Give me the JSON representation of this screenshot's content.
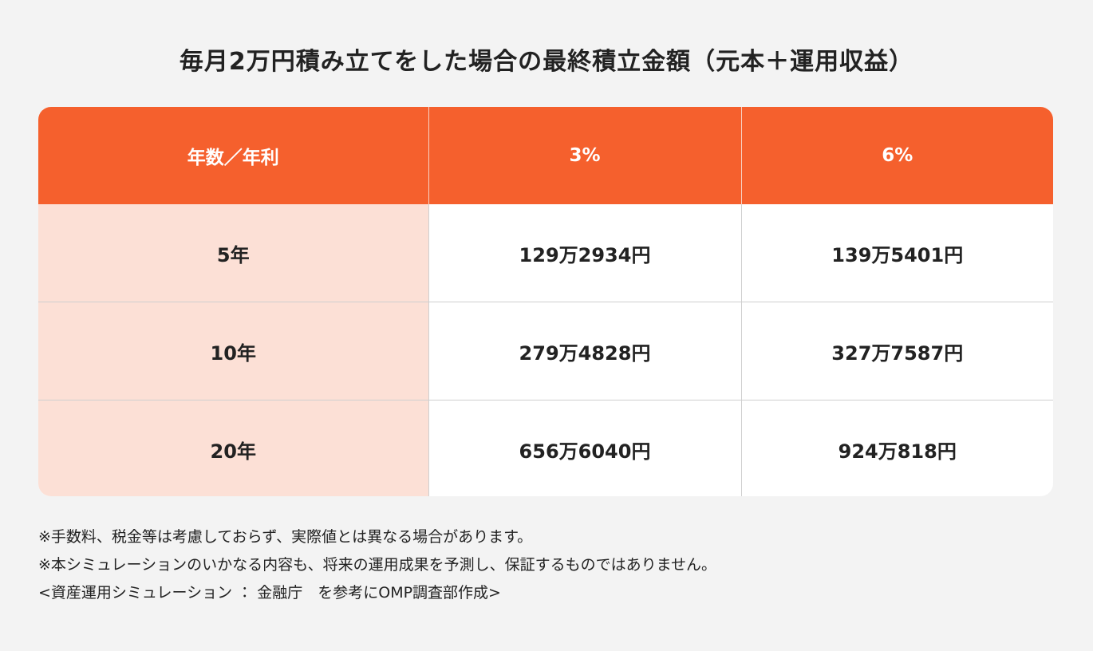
{
  "title": "毎月2万円積み立てをした場合の最終積立金額（元本＋運用収益）",
  "table": {
    "header": [
      "年数／年利",
      "3%",
      "6%"
    ],
    "rows": [
      [
        "5年",
        "129万2934円",
        "139万5401円"
      ],
      [
        "10年",
        "279万4828円",
        "327万7587円"
      ],
      [
        "20年",
        "656万6040円",
        "924万818円"
      ]
    ]
  },
  "notes": [
    "※手数料、税金等は考慮しておらず、実際値とは異なる場合があります。",
    "※本シミュレーションのいかなる内容も、将来の運用成果を予測し、保証するものではありません。",
    "<資産運用シミュレーション ： 金融庁　を参考にOMP調査部作成>"
  ]
}
